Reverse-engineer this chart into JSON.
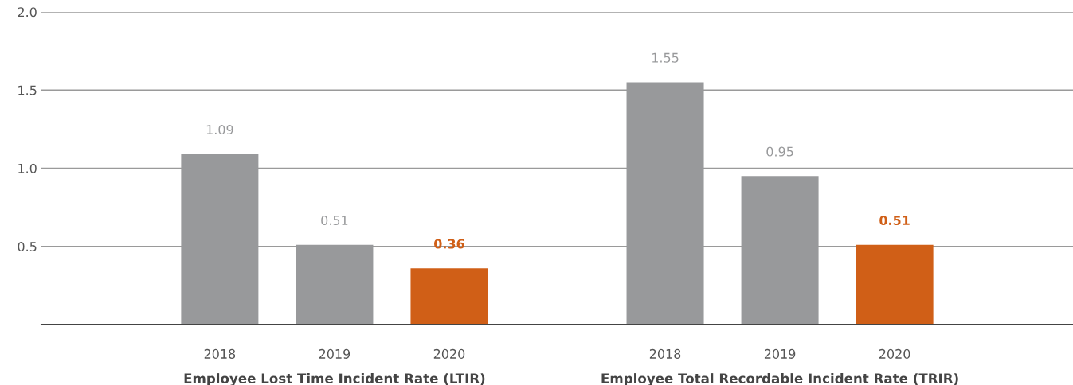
{
  "chart_data": {
    "type": "bar",
    "categories": [
      "Employee Lost Time Incident Rate (LTIR)",
      "Employee Total Recordable Incident Rate (TRIR)"
    ],
    "series": [
      {
        "name": "2018",
        "color": "#98999b",
        "values": [
          1.09,
          1.55
        ]
      },
      {
        "name": "2019",
        "color": "#98999b",
        "values": [
          0.51,
          0.95
        ]
      },
      {
        "name": "2020",
        "color": "#d05f17",
        "values": [
          0.36,
          0.51
        ]
      }
    ],
    "ylim": [
      0,
      2
    ],
    "yticks": [
      {
        "value": 0.5,
        "label": "0.5"
      },
      {
        "value": 1,
        "label": "1.0"
      },
      {
        "value": 1.5,
        "label": "1.5"
      },
      {
        "value": 2,
        "label": "2.0"
      }
    ],
    "grid": "y",
    "data_labels": true
  }
}
